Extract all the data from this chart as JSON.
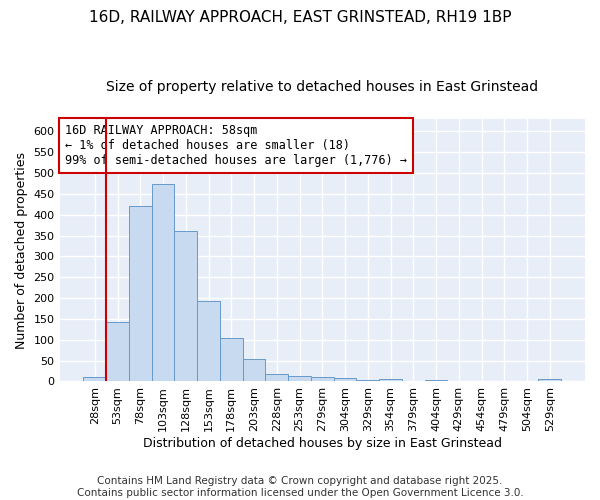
{
  "title": "16D, RAILWAY APPROACH, EAST GRINSTEAD, RH19 1BP",
  "subtitle": "Size of property relative to detached houses in East Grinstead",
  "xlabel": "Distribution of detached houses by size in East Grinstead",
  "ylabel": "Number of detached properties",
  "bar_color": "#c8daf0",
  "bar_edge_color": "#6699cc",
  "fig_background_color": "#ffffff",
  "plot_background_color": "#e8eef8",
  "grid_color": "#ffffff",
  "categories": [
    "28sqm",
    "53sqm",
    "78sqm",
    "103sqm",
    "128sqm",
    "153sqm",
    "178sqm",
    "203sqm",
    "228sqm",
    "253sqm",
    "279sqm",
    "304sqm",
    "329sqm",
    "354sqm",
    "379sqm",
    "404sqm",
    "429sqm",
    "454sqm",
    "479sqm",
    "504sqm",
    "529sqm"
  ],
  "values": [
    10,
    143,
    422,
    473,
    360,
    192,
    105,
    54,
    17,
    13,
    10,
    8,
    3,
    5,
    2,
    3,
    0,
    0,
    0,
    0,
    5
  ],
  "ylim": [
    0,
    630
  ],
  "yticks": [
    0,
    50,
    100,
    150,
    200,
    250,
    300,
    350,
    400,
    450,
    500,
    550,
    600
  ],
  "vline_color": "#cc0000",
  "annotation_box_text": "16D RAILWAY APPROACH: 58sqm\n← 1% of detached houses are smaller (18)\n99% of semi-detached houses are larger (1,776) →",
  "footer_text": "Contains HM Land Registry data © Crown copyright and database right 2025.\nContains public sector information licensed under the Open Government Licence 3.0.",
  "title_fontsize": 11,
  "subtitle_fontsize": 10,
  "axis_label_fontsize": 9,
  "tick_fontsize": 8,
  "annotation_fontsize": 8.5,
  "footer_fontsize": 7.5
}
